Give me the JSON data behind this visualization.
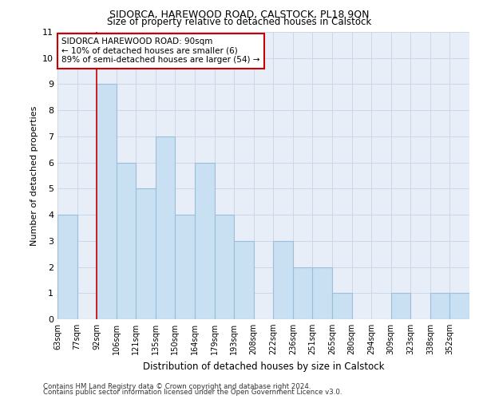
{
  "title1": "SIDORCA, HAREWOOD ROAD, CALSTOCK, PL18 9QN",
  "title2": "Size of property relative to detached houses in Calstock",
  "xlabel": "Distribution of detached houses by size in Calstock",
  "ylabel": "Number of detached properties",
  "categories": [
    "63sqm",
    "77sqm",
    "92sqm",
    "106sqm",
    "121sqm",
    "135sqm",
    "150sqm",
    "164sqm",
    "179sqm",
    "193sqm",
    "208sqm",
    "222sqm",
    "236sqm",
    "251sqm",
    "265sqm",
    "280sqm",
    "294sqm",
    "309sqm",
    "323sqm",
    "338sqm",
    "352sqm"
  ],
  "values": [
    4,
    0,
    9,
    6,
    5,
    7,
    4,
    6,
    4,
    3,
    0,
    3,
    2,
    2,
    1,
    0,
    0,
    1,
    0,
    1,
    1
  ],
  "bar_color": "#c9dff2",
  "bar_edge_color": "#9bbfd8",
  "highlight_line_color": "#cc0000",
  "annotation_text1": "SIDORCA HAREWOOD ROAD: 90sqm",
  "annotation_text2": "← 10% of detached houses are smaller (6)",
  "annotation_text3": "89% of semi-detached houses are larger (54) →",
  "annotation_box_color": "#ffffff",
  "annotation_box_edge": "#cc0000",
  "ylim": [
    0,
    11
  ],
  "yticks": [
    0,
    1,
    2,
    3,
    4,
    5,
    6,
    7,
    8,
    9,
    10,
    11
  ],
  "grid_color": "#ccd8ea",
  "bg_color": "#e8eef8",
  "footer1": "Contains HM Land Registry data © Crown copyright and database right 2024.",
  "footer2": "Contains public sector information licensed under the Open Government Licence v3.0."
}
